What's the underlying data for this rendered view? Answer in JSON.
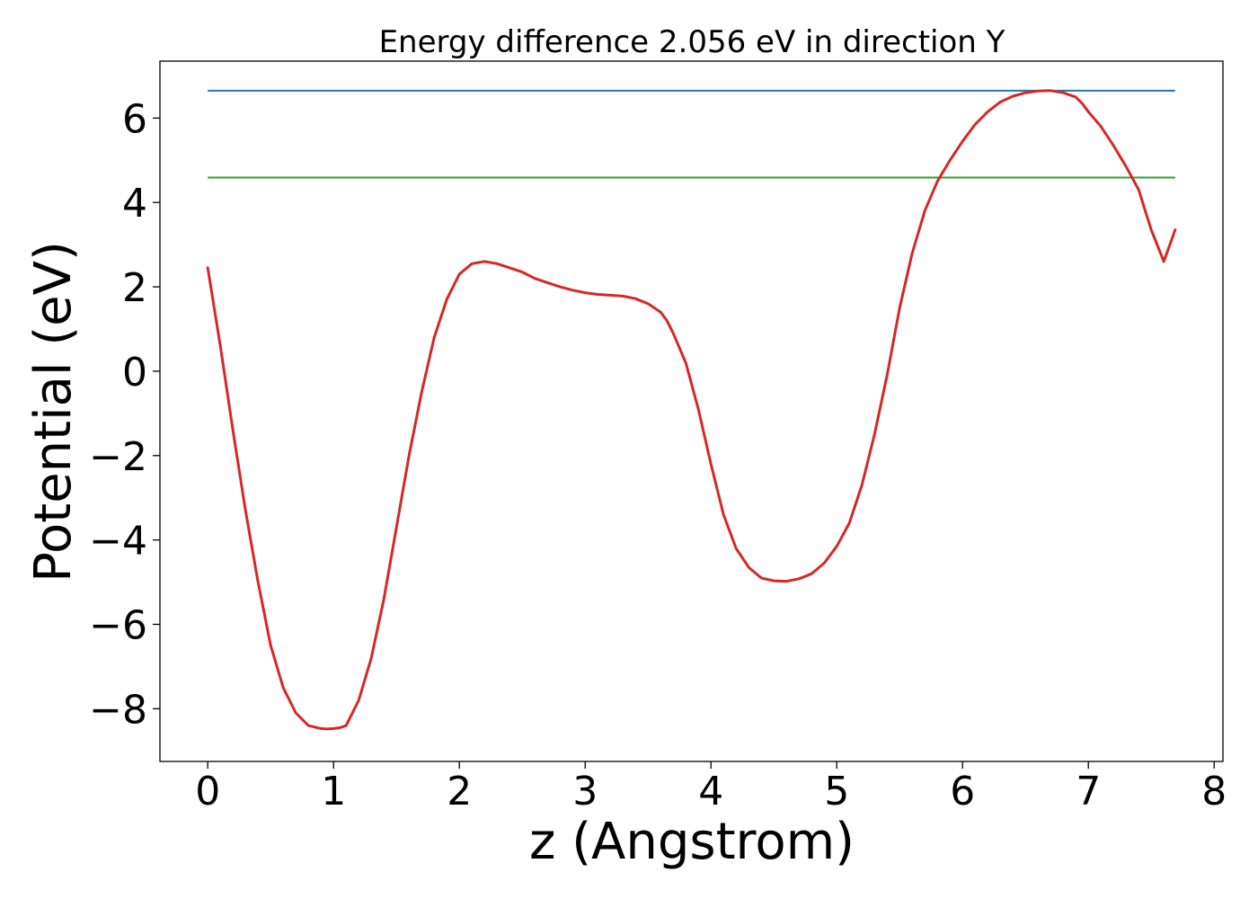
{
  "chart_data": {
    "type": "line",
    "title": "Energy difference 2.056 eV in direction Y",
    "xlabel": "z (Angstrom)",
    "ylabel": "Potential (eV)",
    "xlim": [
      -0.38,
      8.07
    ],
    "ylim": [
      -9.25,
      7.35
    ],
    "xticks": [
      0,
      1,
      2,
      3,
      4,
      5,
      6,
      7,
      8
    ],
    "xtick_labels": [
      "0",
      "1",
      "2",
      "3",
      "4",
      "5",
      "6",
      "7",
      "8"
    ],
    "yticks": [
      -8,
      -6,
      -4,
      -2,
      0,
      2,
      4,
      6
    ],
    "ytick_labels": [
      "−8",
      "−6",
      "−4",
      "−2",
      "0",
      "2",
      "4",
      "6"
    ],
    "grid": false,
    "legend": "none",
    "series": [
      {
        "color": "#d62728",
        "x": [
          0,
          0.1,
          0.2,
          0.3,
          0.4,
          0.5,
          0.6,
          0.7,
          0.8,
          0.9,
          0.95,
          1.0,
          1.05,
          1.1,
          1.2,
          1.3,
          1.4,
          1.5,
          1.6,
          1.7,
          1.8,
          1.9,
          2.0,
          2.1,
          2.2,
          2.3,
          2.4,
          2.5,
          2.6,
          2.7,
          2.8,
          2.9,
          3.0,
          3.1,
          3.2,
          3.3,
          3.4,
          3.5,
          3.6,
          3.65,
          3.7,
          3.8,
          3.9,
          4.0,
          4.1,
          4.2,
          4.3,
          4.4,
          4.5,
          4.6,
          4.7,
          4.8,
          4.9,
          5.0,
          5.1,
          5.2,
          5.3,
          5.4,
          5.5,
          5.6,
          5.7,
          5.8,
          5.9,
          6.0,
          6.1,
          6.2,
          6.3,
          6.4,
          6.5,
          6.6,
          6.7,
          6.8,
          6.9,
          6.95,
          7.0,
          7.1,
          7.2,
          7.3,
          7.4,
          7.5,
          7.6,
          7.69
        ],
        "y": [
          2.45,
          0.6,
          -1.4,
          -3.3,
          -5.0,
          -6.5,
          -7.5,
          -8.1,
          -8.4,
          -8.47,
          -8.48,
          -8.47,
          -8.45,
          -8.4,
          -7.8,
          -6.8,
          -5.4,
          -3.7,
          -2.0,
          -0.5,
          0.8,
          1.7,
          2.3,
          2.55,
          2.6,
          2.55,
          2.45,
          2.35,
          2.2,
          2.1,
          2.0,
          1.92,
          1.86,
          1.82,
          1.8,
          1.78,
          1.72,
          1.6,
          1.4,
          1.2,
          0.9,
          0.2,
          -0.9,
          -2.2,
          -3.4,
          -4.2,
          -4.65,
          -4.9,
          -4.97,
          -4.98,
          -4.92,
          -4.8,
          -4.55,
          -4.15,
          -3.6,
          -2.7,
          -1.5,
          -0.1,
          1.5,
          2.8,
          3.8,
          4.5,
          5.0,
          5.45,
          5.85,
          6.15,
          6.38,
          6.52,
          6.6,
          6.64,
          6.65,
          6.6,
          6.5,
          6.35,
          6.15,
          5.8,
          5.35,
          4.85,
          4.3,
          3.35,
          2.6,
          3.35
        ]
      }
    ],
    "hlines": [
      {
        "y": 6.65,
        "xmin": 0,
        "xmax": 7.69,
        "color": "#1f77b4"
      },
      {
        "y": 4.59,
        "xmin": 0,
        "xmax": 7.69,
        "color": "#2ca02c"
      }
    ]
  }
}
